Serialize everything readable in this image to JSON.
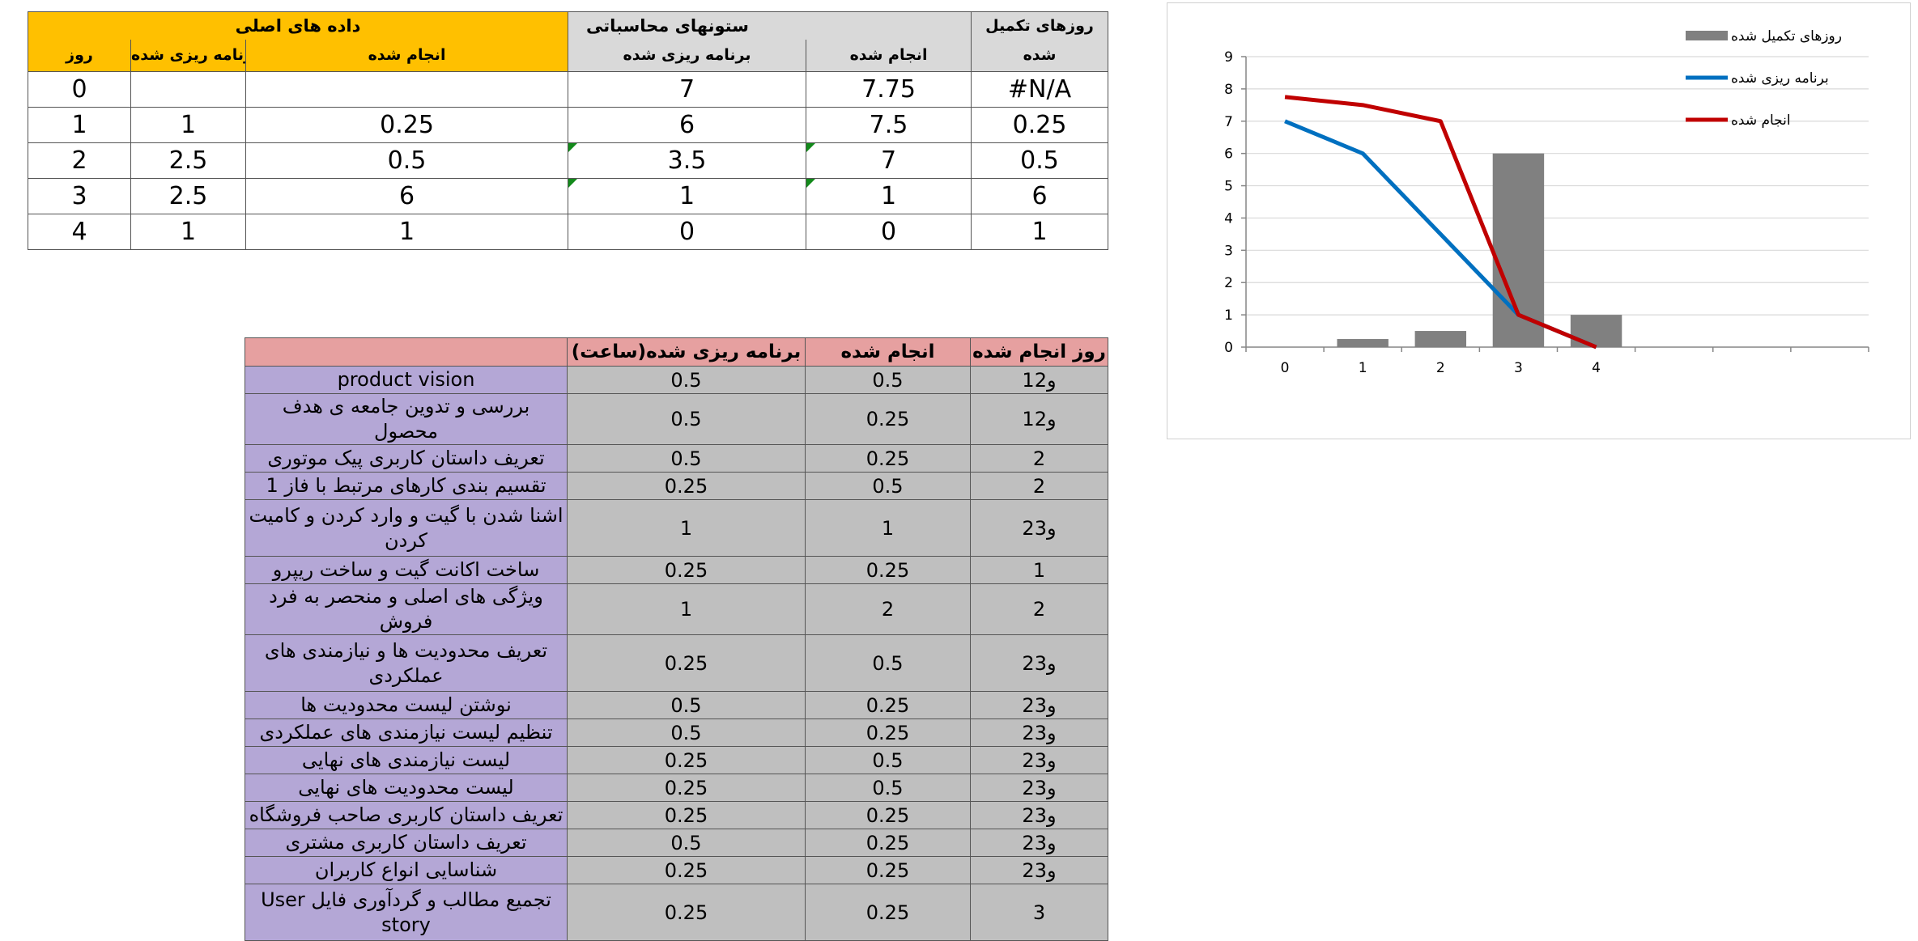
{
  "top_table": {
    "group_main": "داده های اصلی",
    "group_calc": "ستونهای محاسباتی",
    "group_completed_line1": "روزهای تکمیل",
    "group_completed_line2": "شده",
    "col_day": "روز",
    "col_planned": "برنامه ریزی شده",
    "col_done": "انجام شده",
    "col_calc_planned": "برنامه ریزی شده",
    "col_calc_done": "انجام شده",
    "rows": [
      {
        "day": "0",
        "planned": "",
        "done": "",
        "calc_planned": "7",
        "calc_done": "7.75",
        "completed": "#N/A"
      },
      {
        "day": "1",
        "planned": "1",
        "done": "0.25",
        "calc_planned": "6",
        "calc_done": "7.5",
        "completed": "0.25"
      },
      {
        "day": "2",
        "planned": "2.5",
        "done": "0.5",
        "calc_planned": "3.5",
        "calc_done": "7",
        "completed": "0.5"
      },
      {
        "day": "3",
        "planned": "2.5",
        "done": "6",
        "calc_planned": "1",
        "calc_done": "1",
        "completed": "6"
      },
      {
        "day": "4",
        "planned": "1",
        "done": "1",
        "calc_planned": "0",
        "calc_done": "0",
        "completed": "1"
      }
    ]
  },
  "task_table": {
    "header_planned": "برنامه ریزی شده(ساعت)",
    "header_done": "انجام شده",
    "header_day": "روز انجام شده",
    "rows": [
      {
        "name": "product vision",
        "planned": "0.5",
        "done": "0.5",
        "day": "1و2"
      },
      {
        "name": "بررسی و تدوین جامعه ی هدف محصول",
        "planned": "0.5",
        "done": "0.25",
        "day": "1و2"
      },
      {
        "name": "تعریف داستان کاربری پیک موتوری",
        "planned": "0.5",
        "done": "0.25",
        "day": "2"
      },
      {
        "name": "تقسیم بندی کارهای مرتبط با فاز 1",
        "planned": "0.25",
        "done": "0.5",
        "day": "2"
      },
      {
        "name": "اشنا شدن با گیت و وارد کردن و کامیت کردن",
        "planned": "1",
        "done": "1",
        "day": "2و3"
      },
      {
        "name": "ساخت اکانت گیت و ساخت ریپرو",
        "planned": "0.25",
        "done": "0.25",
        "day": "1"
      },
      {
        "name": "ویژگی های اصلی و منحصر به فرد فروش",
        "planned": "1",
        "done": "2",
        "day": "2"
      },
      {
        "name": "تعریف محدودیت ها و نیازمندی های عملکردی",
        "planned": "0.25",
        "done": "0.5",
        "day": "2و3"
      },
      {
        "name": "نوشتن لیست محدودیت ها",
        "planned": "0.5",
        "done": "0.25",
        "day": "2و3"
      },
      {
        "name": "تنظیم لیست نیازمندی های عملکردی",
        "planned": "0.5",
        "done": "0.25",
        "day": "2و3"
      },
      {
        "name": "لیست نیازمندی های نهایی",
        "planned": "0.25",
        "done": "0.5",
        "day": "2و3"
      },
      {
        "name": "لیست محدودیت های نهایی",
        "planned": "0.25",
        "done": "0.5",
        "day": "2و3"
      },
      {
        "name": "تعریف داستان کاربری صاحب فروشگاه",
        "planned": "0.25",
        "done": "0.25",
        "day": "2و3"
      },
      {
        "name": "تعریف داستان کاربری مشتری",
        "planned": "0.5",
        "done": "0.25",
        "day": "2و3"
      },
      {
        "name": "شناسایی انواع کاربران",
        "planned": "0.25",
        "done": "0.25",
        "day": "2و3"
      },
      {
        "name": "تجمیع مطالب و گردآوری فایل User story",
        "planned": "0.25",
        "done": "0.25",
        "day": "3"
      }
    ]
  },
  "chart_data": {
    "type": "bar",
    "categories": [
      "0",
      "1",
      "2",
      "3",
      "4"
    ],
    "ylim": [
      0,
      9
    ],
    "yticks": [
      "0",
      "1",
      "2",
      "3",
      "4",
      "5",
      "6",
      "7",
      "8",
      "9"
    ],
    "extra_empty_category_slots": 3,
    "grid": true,
    "legend_position": "top-right",
    "series": [
      {
        "name": "روزهای تکمیل شده",
        "kind": "bar",
        "color": "#808080",
        "values": [
          null,
          0.25,
          0.5,
          6,
          1
        ]
      },
      {
        "name": "برنامه ریزی شده",
        "kind": "line",
        "color": "#0070c0",
        "values": [
          7,
          6,
          3.5,
          1,
          0
        ]
      },
      {
        "name": "انجام شده",
        "kind": "line",
        "color": "#c00000",
        "values": [
          7.75,
          7.5,
          7,
          1,
          0
        ]
      }
    ]
  }
}
